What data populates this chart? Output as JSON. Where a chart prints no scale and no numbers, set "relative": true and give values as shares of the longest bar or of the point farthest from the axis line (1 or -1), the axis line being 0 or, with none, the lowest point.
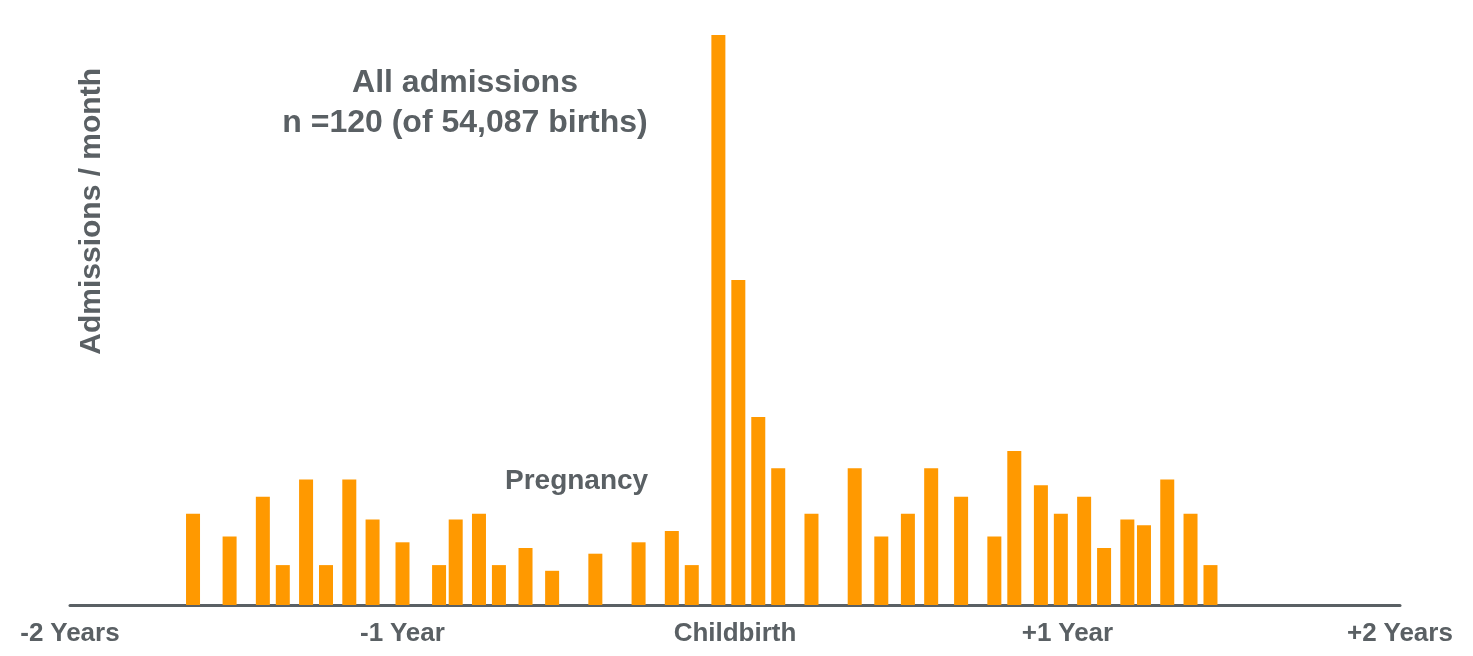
{
  "chart_data": {
    "type": "bar",
    "title": "All admissions",
    "subtitle": "n =120 (of 54,087 births)",
    "ylabel": "Admissions / month",
    "annotations": [
      "Pregnancy"
    ],
    "relative": true,
    "x": [
      -1.63,
      -1.52,
      -1.42,
      -1.36,
      -1.29,
      -1.23,
      -1.16,
      -1.09,
      -1.0,
      -0.89,
      -0.84,
      -0.77,
      -0.71,
      -0.63,
      -0.55,
      -0.42,
      -0.29,
      -0.19,
      -0.13,
      -0.05,
      0.01,
      0.07,
      0.13,
      0.23,
      0.36,
      0.44,
      0.52,
      0.59,
      0.68,
      0.78,
      0.84,
      0.92,
      0.98,
      1.05,
      1.11,
      1.18,
      1.23,
      1.3,
      1.37,
      1.43
    ],
    "values": [
      0.16,
      0.12,
      0.19,
      0.07,
      0.22,
      0.07,
      0.22,
      0.15,
      0.11,
      0.07,
      0.15,
      0.16,
      0.07,
      0.1,
      0.06,
      0.09,
      0.11,
      0.13,
      0.07,
      1,
      0.57,
      0.33,
      0.24,
      0.16,
      0.24,
      0.12,
      0.16,
      0.24,
      0.19,
      0.12,
      0.27,
      0.21,
      0.16,
      0.19,
      0.1,
      0.15,
      0.14,
      0.22,
      0.16,
      0.07
    ],
    "color": "#ff9900",
    "xlim": [
      -2,
      2
    ],
    "xticks": [
      {
        "value": -2,
        "label": "-2 Years"
      },
      {
        "value": -1,
        "label": "-1 Year"
      },
      {
        "value": 0,
        "label": "Childbirth"
      },
      {
        "value": 1,
        "label": "+1 Year"
      },
      {
        "value": 2,
        "label": "+2 Years"
      }
    ],
    "grid": false
  }
}
